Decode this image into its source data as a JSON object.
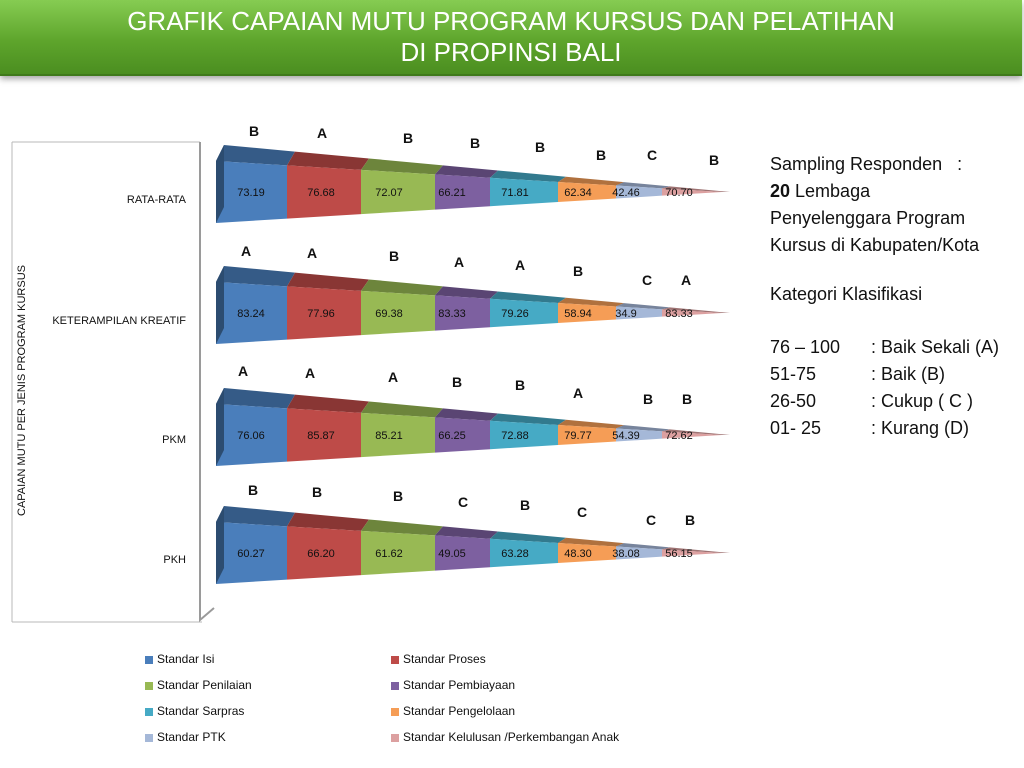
{
  "title": {
    "line1": "GRAFIK CAPAIAN MUTU PROGRAM KURSUS DAN PELATIHAN",
    "line2": "DI PROPINSI BALI"
  },
  "side_info": {
    "sampling_label": "Sampling Responden   :",
    "count": "20",
    "count_suffix": " Lembaga",
    "line3": "Penyelenggara Program",
    "line4": "Kursus di Kabupaten/Kota",
    "category_title": "Kategori Klasifikasi",
    "classes": [
      {
        "range": "76 – 100",
        "desc": ": Baik Sekali (A)"
      },
      {
        "range": "51-75",
        "desc": ": Baik (B)"
      },
      {
        "range": "26-50",
        "desc": ": Cukup ( C )"
      },
      {
        "range": "01- 25",
        "desc": ": Kurang (D)"
      }
    ]
  },
  "chart_data": {
    "type": "bar",
    "stacked": true,
    "orientation": "horizontal",
    "ylabel": "CAPAIAN MUTU PER JENIS PROGRAM KURSUS",
    "categories": [
      "RATA-RATA",
      "KETERAMPILAN KREATIF",
      "PKM",
      "PKH"
    ],
    "series": [
      {
        "name": "Standar Isi",
        "color": "#4a7ebb",
        "values": [
          "73.19",
          "83.24",
          "76.06",
          "60.27"
        ],
        "grades": [
          "B",
          "A",
          "A",
          "B"
        ]
      },
      {
        "name": "Standar Proses",
        "color": "#be4b48",
        "values": [
          "76.68",
          "77.96",
          "85.87",
          "66.20"
        ],
        "grades": [
          "A",
          "A",
          "A",
          "B"
        ]
      },
      {
        "name": "Standar Penilaian",
        "color": "#98b954",
        "values": [
          "72.07",
          "69.38",
          "85.21",
          "61.62"
        ],
        "grades": [
          "B",
          "B",
          "A",
          "B"
        ]
      },
      {
        "name": "Standar Pembiayaan",
        "color": "#7d60a0",
        "values": [
          "66.21",
          "83.33",
          "66.25",
          "49.05"
        ],
        "grades": [
          "B",
          "A",
          "B",
          "C"
        ]
      },
      {
        "name": "Standar Sarpras",
        "color": "#46aac5",
        "values": [
          "71.81",
          "79.26",
          "72.88",
          "63.28"
        ],
        "grades": [
          "B",
          "A",
          "B",
          "B"
        ]
      },
      {
        "name": "Standar Pengelolaan",
        "color": "#f59d56",
        "values": [
          "62.34",
          "58.94",
          "79.77",
          "48.30"
        ],
        "grades": [
          "B",
          "B",
          "A",
          "C"
        ]
      },
      {
        "name": "Standar PTK",
        "color": "#a5b8d8",
        "values": [
          "42.46",
          "34.9",
          "54.39",
          "38.08"
        ],
        "grades": [
          "C",
          "C",
          "B",
          "C"
        ]
      },
      {
        "name": "Standar Kelulusan /Perkembangan Anak",
        "color": "#dca0a0",
        "values": [
          "70.70",
          "83.33",
          "72.62",
          "56.15"
        ],
        "grades": [
          "B",
          "A",
          "B",
          "B"
        ]
      }
    ],
    "legend_position": "bottom",
    "grid": false
  }
}
